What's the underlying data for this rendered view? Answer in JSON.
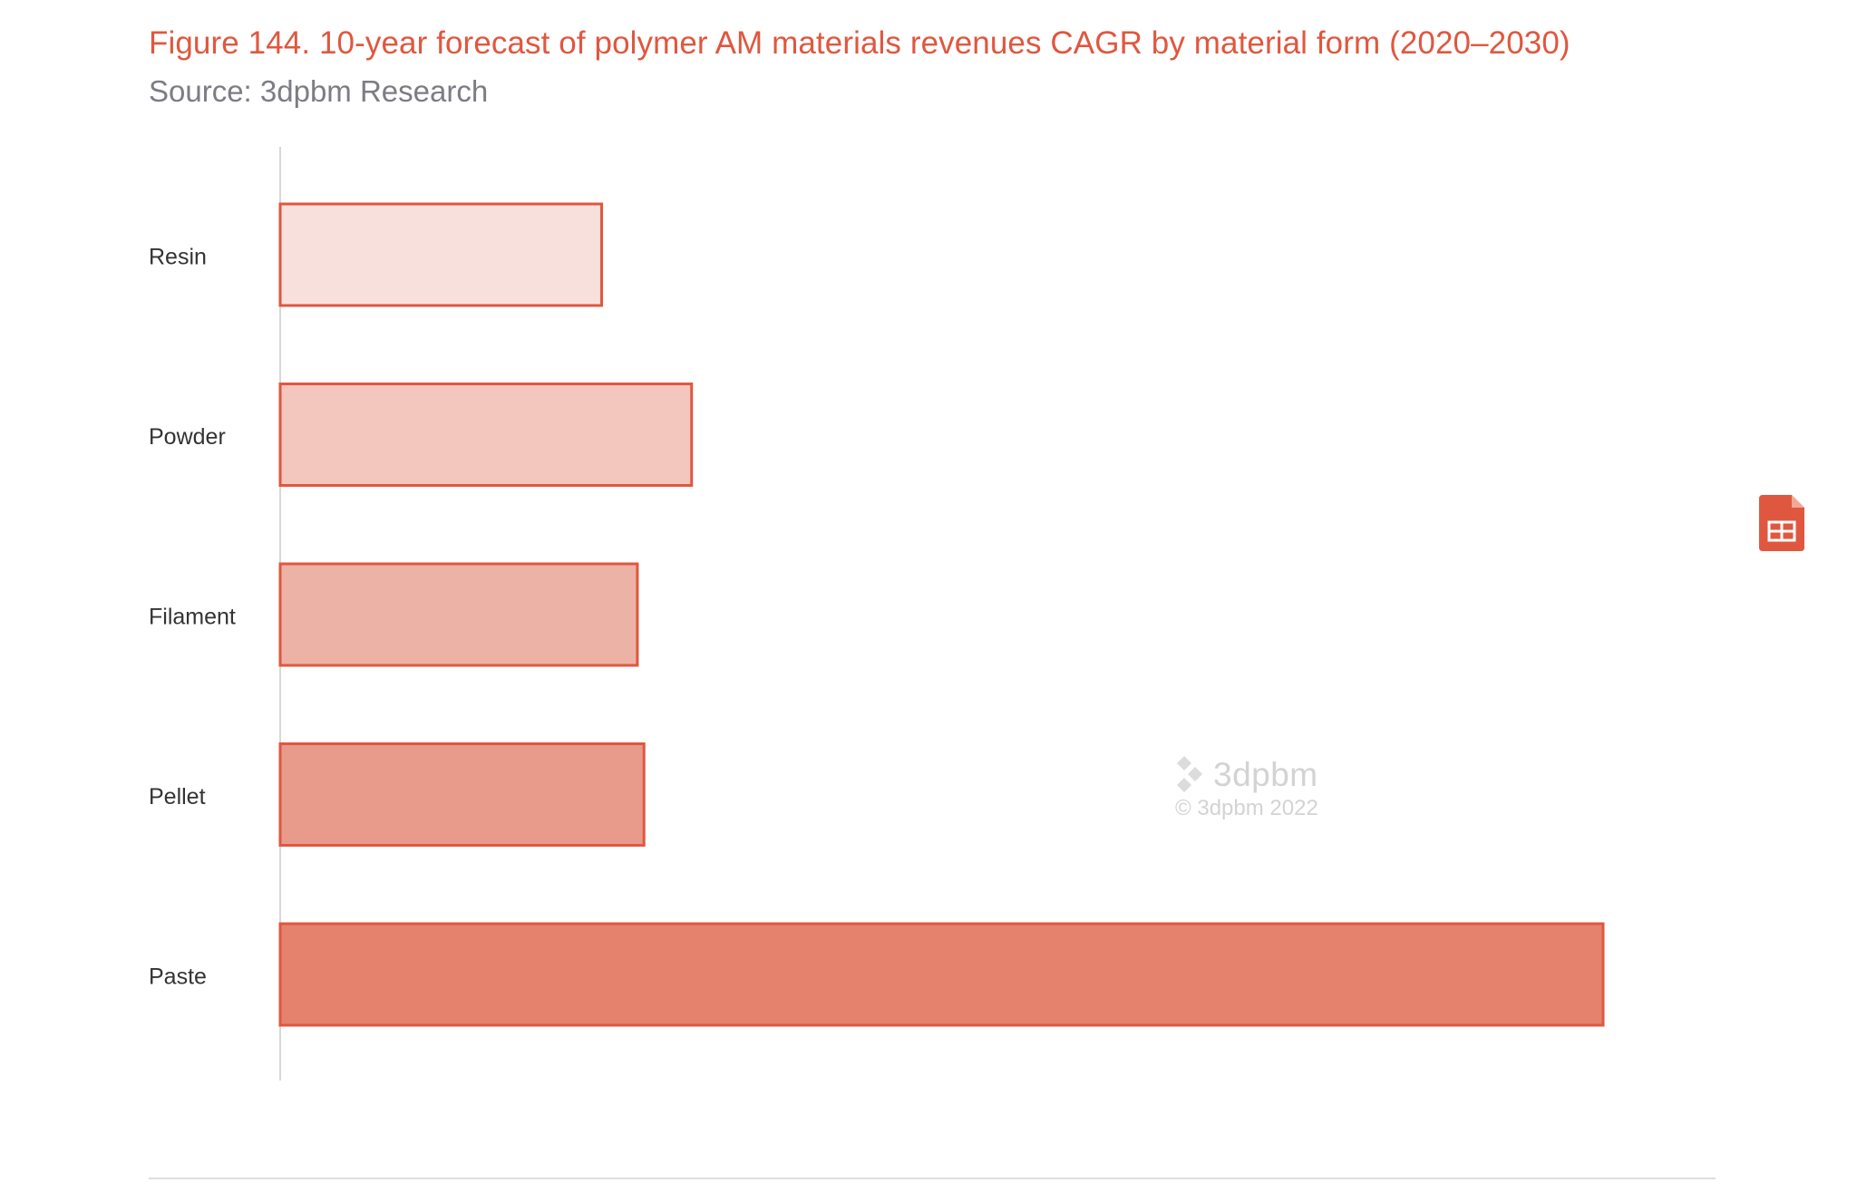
{
  "header": {
    "title": "Figure 144. 10-year forecast of polymer AM materials revenues CAGR by material form (2020–2030)",
    "subtitle": "Source: 3dpbm Research"
  },
  "watermark": {
    "brand": "3dpbm",
    "copyright": "© 3dpbm 2022"
  },
  "icons": {
    "spreadsheet": "spreadsheet-icon",
    "watermark_logo": "3dpbm-logo-icon"
  },
  "colors": {
    "title": "#e0573f",
    "subtitle": "#7c7c84",
    "bar_stroke": "#e0573f",
    "bar_fills": [
      "#f8e0dc",
      "#f3c6be",
      "#edb2a6",
      "#e89a8b",
      "#e4826e"
    ]
  },
  "chart_data": {
    "type": "bar",
    "orientation": "horizontal",
    "title": "Figure 144. 10-year forecast of polymer AM materials revenues CAGR by material form (2020–2030)",
    "subtitle": "Source: 3dpbm Research",
    "categories": [
      "Resin",
      "Powder",
      "Filament",
      "Pellet",
      "Paste"
    ],
    "values": [
      24.3,
      31.1,
      27.0,
      27.5,
      100
    ],
    "value_scale": "relative (longest bar = 100); no value axis or data labels printed",
    "xlabel": "",
    "ylabel": "",
    "xlim": [
      0,
      100
    ],
    "grid": false,
    "legend": "none"
  }
}
